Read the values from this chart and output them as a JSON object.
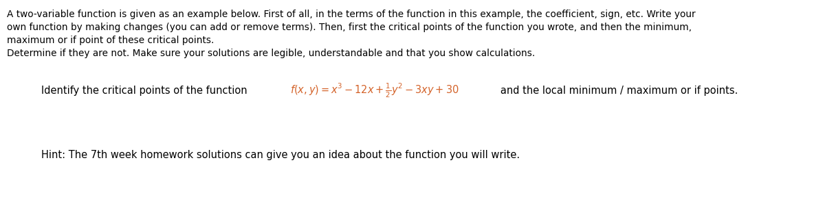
{
  "background_color": "#ffffff",
  "figsize": [
    12.0,
    3.17
  ],
  "dpi": 100,
  "paragraph_line1": "A two-variable function is given as an example below. First of all, in the terms of the function in this example, the coefficient, sign, etc. Write your",
  "paragraph_line2": "own function by making changes (you can add or remove terms). Then, first the critical points of the function you wrote, and then the minimum,",
  "paragraph_line3": "maximum or if point of these critical points.",
  "paragraph_line4": "Determine if they are not. Make sure your solutions are legible, understandable and that you show calculations.",
  "text_color": "#000000",
  "orange_color": "#d4632a",
  "para_fontsize": 9.8,
  "eq_fontsize": 10.5,
  "hint_fontsize": 10.5
}
